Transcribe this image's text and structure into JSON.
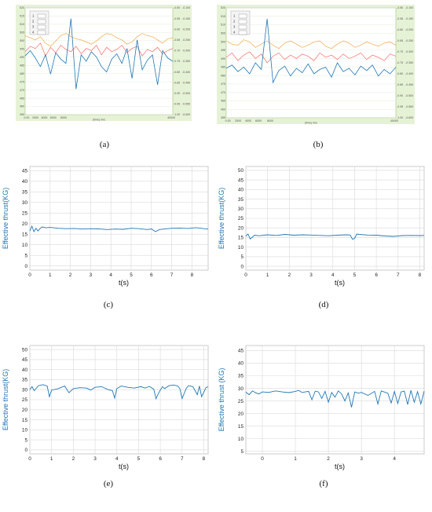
{
  "captions": {
    "a": "(a)",
    "b": "(b)",
    "c": "(c)",
    "d": "(d)",
    "e": "(e)",
    "f": "(f)"
  },
  "colors": {
    "monitor_bg": "#e6f2d5",
    "monitor_plot": "#ffffff",
    "blue": "#1f77b4",
    "red": "#ff6b6b",
    "orange": "#f2a84a",
    "grid": "#d9d9d9",
    "axes": "#bfbfbf"
  },
  "chart_data": [
    {
      "id": "a",
      "type": "line",
      "title": "",
      "xlabel": "(time) /ms",
      "ylabel": "",
      "x_ticks": [
        "0.00",
        "2000",
        "4000",
        "6000",
        "8000",
        "40000"
      ],
      "y_left_ticks": [
        "455",
        "460",
        "465",
        "470",
        "475",
        "480",
        "485",
        "490",
        "495",
        "500",
        "505",
        "510",
        "515",
        "520"
      ],
      "y_right_ticks_1": [
        "-0.50",
        "-0.55",
        "-0.60",
        "-0.65",
        "-0.70",
        "-0.75",
        "-0.80",
        "-0.85",
        "-0.90",
        "-0.95",
        "-1.00"
      ],
      "y_right_ticks_2": [
        "-0.100",
        "-0.150",
        "-0.200",
        "-0.250",
        "-0.300",
        "-0.350",
        "-0.400",
        "-0.450",
        "-0.500",
        "-0.550",
        "-0.600"
      ],
      "legend": [
        "1",
        "2",
        "3",
        "4"
      ],
      "series": [
        {
          "name": "orange",
          "values": [
            0.26,
            0.28,
            0.3,
            0.27,
            0.33,
            0.36,
            0.31,
            0.26,
            0.24,
            0.27,
            0.29,
            0.3,
            0.32,
            0.34,
            0.31,
            0.27,
            0.24,
            0.25,
            0.28,
            0.3,
            0.34,
            0.32,
            0.27,
            0.24,
            0.26,
            0.27,
            0.3,
            0.33,
            0.29,
            0.28
          ]
        },
        {
          "name": "red",
          "values": [
            0.41,
            0.36,
            0.38,
            0.33,
            0.45,
            0.37,
            0.42,
            0.35,
            0.39,
            0.41,
            0.36,
            0.43,
            0.38,
            0.4,
            0.35,
            0.44,
            0.37,
            0.41,
            0.39,
            0.35,
            0.42,
            0.38,
            0.36,
            0.45,
            0.39,
            0.41,
            0.37,
            0.43,
            0.4,
            0.38
          ]
        },
        {
          "name": "blue",
          "values": [
            0.45,
            0.4,
            0.47,
            0.55,
            0.44,
            0.62,
            0.42,
            0.48,
            0.52,
            0.1,
            0.76,
            0.44,
            0.5,
            0.41,
            0.46,
            0.55,
            0.6,
            0.48,
            0.43,
            0.52,
            0.38,
            0.66,
            0.3,
            0.58,
            0.49,
            0.44,
            0.72,
            0.4,
            0.47,
            0.5
          ]
        }
      ]
    },
    {
      "id": "b",
      "type": "line",
      "title": "",
      "xlabel": "(time) /ms",
      "ylabel": "",
      "x_ticks": [
        "0.00",
        "2000",
        "4000",
        "6000",
        "8000",
        "40000"
      ],
      "y_left_ticks": [
        "455",
        "460",
        "465",
        "470",
        "475",
        "480",
        "485",
        "490",
        "495",
        "500",
        "505",
        "510",
        "515",
        "520"
      ],
      "y_right_ticks_1": [
        "-0.50",
        "-0.55",
        "-0.60",
        "-0.65",
        "-0.70",
        "-0.75",
        "-0.80",
        "-0.85",
        "-0.90",
        "-0.95",
        "-1.00"
      ],
      "y_right_ticks_2": [
        "-0.100",
        "-0.150",
        "-0.200",
        "-0.250",
        "-0.300",
        "-0.350",
        "-0.400",
        "-0.450",
        "-0.500",
        "-0.550",
        "-0.600"
      ],
      "legend": [
        "1",
        "2",
        "3",
        "4"
      ],
      "series": [
        {
          "name": "orange",
          "values": [
            0.3,
            0.33,
            0.34,
            0.29,
            0.31,
            0.36,
            0.33,
            0.3,
            0.34,
            0.37,
            0.32,
            0.3,
            0.33,
            0.36,
            0.34,
            0.31,
            0.3,
            0.35,
            0.37,
            0.33,
            0.3,
            0.32,
            0.36,
            0.34,
            0.31,
            0.33,
            0.35,
            0.32,
            0.31,
            0.34
          ]
        },
        {
          "name": "red",
          "values": [
            0.45,
            0.41,
            0.48,
            0.43,
            0.4,
            0.46,
            0.42,
            0.5,
            0.44,
            0.41,
            0.47,
            0.43,
            0.46,
            0.42,
            0.44,
            0.48,
            0.41,
            0.45,
            0.43,
            0.47,
            0.42,
            0.46,
            0.44,
            0.41,
            0.47,
            0.43,
            0.45,
            0.48,
            0.42,
            0.44
          ]
        },
        {
          "name": "blue",
          "values": [
            0.55,
            0.52,
            0.58,
            0.54,
            0.6,
            0.5,
            0.56,
            0.1,
            0.68,
            0.57,
            0.53,
            0.62,
            0.55,
            0.59,
            0.51,
            0.6,
            0.56,
            0.54,
            0.63,
            0.5,
            0.58,
            0.55,
            0.61,
            0.53,
            0.57,
            0.52,
            0.62,
            0.56,
            0.6,
            0.54
          ]
        }
      ]
    },
    {
      "id": "c",
      "type": "line",
      "title": "",
      "xlabel": "t(s)",
      "ylabel": "Effective thrust(KG)",
      "x_ticks": [
        0,
        1,
        2,
        3,
        4,
        5,
        6,
        7,
        8
      ],
      "y_ticks": [
        0,
        5,
        10,
        15,
        20,
        25,
        30,
        35,
        40,
        45
      ],
      "xlim": [
        0,
        8.8
      ],
      "ylim": [
        -2,
        47
      ],
      "x": [
        0,
        0.1,
        0.2,
        0.3,
        0.4,
        0.5,
        0.6,
        0.8,
        1,
        1.4,
        1.8,
        2.2,
        2.6,
        3,
        3.4,
        3.8,
        4.2,
        4.6,
        5,
        5.4,
        5.8,
        6,
        6.2,
        6.4,
        6.6,
        7,
        7.4,
        7.8,
        8.2,
        8.6,
        8.8
      ],
      "y": [
        16.5,
        18.8,
        16.2,
        17.8,
        16.5,
        17.6,
        18.4,
        18,
        18.2,
        17.8,
        17.6,
        17.7,
        17.4,
        17.6,
        17.5,
        17.2,
        17.4,
        17.3,
        17.8,
        17.6,
        17.2,
        17.5,
        16.2,
        17.2,
        17.4,
        17.8,
        17.9,
        17.7,
        18.1,
        17.6,
        17.4
      ]
    },
    {
      "id": "d",
      "type": "line",
      "title": "",
      "xlabel": "t(s)",
      "ylabel": "Effective thrust(KG)",
      "x_ticks": [
        0,
        1,
        2,
        3,
        4,
        5,
        6,
        7,
        8
      ],
      "y_ticks": [
        0,
        5,
        10,
        15,
        20,
        25,
        30,
        35,
        40,
        45,
        50
      ],
      "xlim": [
        0,
        8.2
      ],
      "ylim": [
        -2,
        52
      ],
      "x": [
        0,
        0.1,
        0.2,
        0.4,
        0.6,
        1,
        1.4,
        1.8,
        2.2,
        2.6,
        3,
        3.4,
        3.8,
        4.2,
        4.6,
        4.8,
        4.9,
        5,
        5.1,
        5.2,
        5.6,
        6,
        6.4,
        6.8,
        7.2,
        7.6,
        8,
        8.2
      ],
      "y": [
        15.8,
        16.8,
        14.2,
        16.2,
        15.9,
        16.4,
        16.1,
        16.6,
        16.2,
        16.4,
        16.3,
        16.1,
        15.9,
        16.2,
        16.4,
        16.3,
        14.1,
        14.5,
        16.8,
        16.6,
        16.3,
        16.2,
        15.8,
        15.6,
        16,
        16.1,
        16,
        16.1
      ]
    },
    {
      "id": "e",
      "type": "line",
      "title": "",
      "xlabel": "t(s)",
      "ylabel": "Effective thrust(KG)",
      "x_ticks": [
        0,
        1,
        2,
        3,
        4,
        5,
        6,
        7,
        8
      ],
      "y_ticks": [
        0,
        5,
        10,
        15,
        20,
        25,
        30,
        35,
        40,
        45,
        50
      ],
      "xlim": [
        0,
        8.2
      ],
      "ylim": [
        -2,
        52
      ],
      "x": [
        0,
        0.1,
        0.2,
        0.4,
        0.6,
        0.8,
        0.9,
        1,
        1.3,
        1.6,
        1.8,
        2,
        2.3,
        2.6,
        2.8,
        3,
        3.3,
        3.6,
        3.8,
        3.9,
        4,
        4.2,
        4.5,
        4.8,
        5.1,
        5.3,
        5.5,
        5.7,
        5.8,
        5.9,
        6,
        6.1,
        6.2,
        6.4,
        6.6,
        6.8,
        6.9,
        7,
        7.2,
        7.3,
        7.5,
        7.7,
        7.8,
        7.9,
        8.1,
        8.2
      ],
      "y": [
        30,
        31.5,
        29.5,
        32,
        32.5,
        31.8,
        26.5,
        29.8,
        30.5,
        31.8,
        28.5,
        30.5,
        31,
        30.8,
        29.8,
        31.2,
        31.5,
        30,
        29.5,
        25.8,
        30.5,
        31.8,
        31.2,
        30.8,
        31.5,
        30.8,
        31.6,
        30.2,
        25.5,
        27.8,
        29.8,
        31.5,
        30.5,
        32,
        32.3,
        31.9,
        30.5,
        25.6,
        30.8,
        32,
        31.5,
        27.5,
        31.8,
        26.5,
        31,
        31.5
      ]
    },
    {
      "id": "f",
      "type": "line",
      "title": "",
      "xlabel": "t(s)",
      "ylabel": "Effective thrust (KG)",
      "x_ticks": [
        0,
        1,
        2,
        3,
        4
      ],
      "y_ticks": [
        5,
        10,
        15,
        20,
        25,
        30,
        35,
        40,
        45
      ],
      "xlim": [
        -0.5,
        4.9
      ],
      "ylim": [
        4,
        47
      ],
      "x": [
        -0.5,
        -0.4,
        -0.3,
        -0.2,
        -0.1,
        0,
        0.2,
        0.4,
        0.6,
        0.8,
        1,
        1.1,
        1.2,
        1.4,
        1.5,
        1.6,
        1.7,
        1.8,
        1.9,
        2,
        2.1,
        2.2,
        2.3,
        2.4,
        2.5,
        2.6,
        2.7,
        2.8,
        2.9,
        3,
        3.2,
        3.4,
        3.5,
        3.6,
        3.8,
        3.9,
        4,
        4.1,
        4.2,
        4.3,
        4.4,
        4.5,
        4.6,
        4.7,
        4.8,
        4.9
      ],
      "y": [
        28.5,
        27.5,
        29,
        28.2,
        27.8,
        28.6,
        28.4,
        29,
        28.6,
        28.3,
        28.8,
        29.2,
        28.4,
        28.8,
        25.5,
        28.9,
        28.6,
        26,
        28.8,
        24.5,
        28.4,
        26.5,
        29,
        27.8,
        25,
        28.2,
        22.5,
        28.6,
        28.1,
        28.4,
        27.2,
        28.8,
        23.8,
        29,
        28.1,
        24.2,
        28.8,
        24,
        28.6,
        28.9,
        23.6,
        29.2,
        24.5,
        28.7,
        23.8,
        28.9
      ]
    }
  ]
}
